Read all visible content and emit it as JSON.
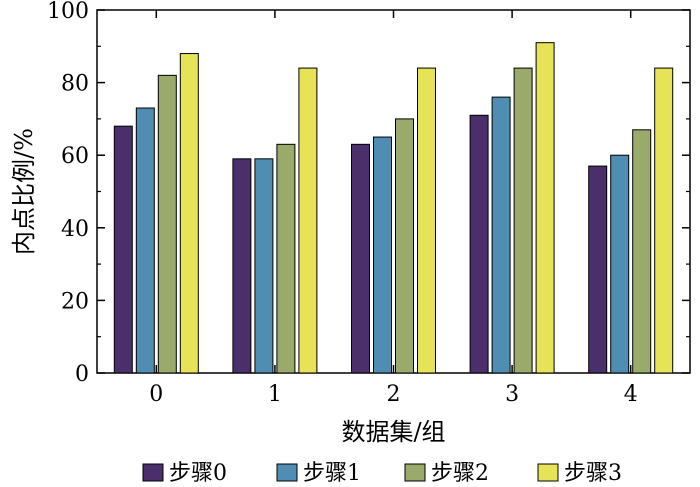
{
  "chart_data": {
    "type": "bar",
    "title": "",
    "xlabel": "数据集/组",
    "ylabel": "内点比例/%",
    "categories": [
      "0",
      "1",
      "2",
      "3",
      "4"
    ],
    "ylim": [
      0,
      100
    ],
    "yticks": [
      "0",
      "20",
      "40",
      "60",
      "80",
      "100"
    ],
    "series": [
      {
        "name": "步骤0",
        "color": "#4a2f6b",
        "values": [
          68,
          59,
          63,
          71,
          57
        ]
      },
      {
        "name": "步骤1",
        "color": "#4f8db2",
        "values": [
          73,
          59,
          65,
          76,
          60
        ]
      },
      {
        "name": "步骤2",
        "color": "#9aaa6a",
        "values": [
          82,
          63,
          70,
          84,
          67
        ]
      },
      {
        "name": "步骤3",
        "color": "#e7e356",
        "values": [
          88,
          84,
          84,
          91,
          84
        ]
      }
    ],
    "legend_position": "bottom",
    "grid": false
  }
}
